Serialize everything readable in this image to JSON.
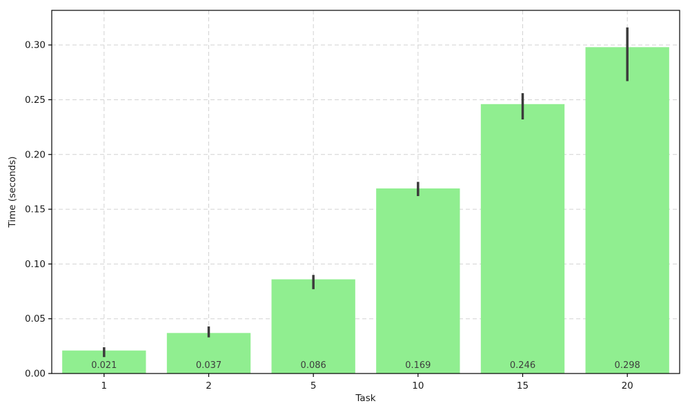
{
  "chart_data": {
    "type": "bar",
    "title": "",
    "xlabel": "Task",
    "ylabel": "Time (seconds)",
    "categories": [
      "1",
      "2",
      "5",
      "10",
      "15",
      "20"
    ],
    "values": [
      0.021,
      0.037,
      0.086,
      0.169,
      0.246,
      0.298
    ],
    "value_labels": [
      "0.021",
      "0.037",
      "0.086",
      "0.169",
      "0.246",
      "0.298"
    ],
    "error_low": [
      0.015,
      0.033,
      0.077,
      0.162,
      0.232,
      0.267
    ],
    "error_high": [
      0.024,
      0.043,
      0.09,
      0.175,
      0.256,
      0.316
    ],
    "y_ticks": [
      {
        "v": 0.0,
        "label": "0.00"
      },
      {
        "v": 0.05,
        "label": "0.05"
      },
      {
        "v": 0.1,
        "label": "0.10"
      },
      {
        "v": 0.15,
        "label": "0.15"
      },
      {
        "v": 0.2,
        "label": "0.20"
      },
      {
        "v": 0.25,
        "label": "0.25"
      },
      {
        "v": 0.3,
        "label": "0.30"
      }
    ],
    "ylim": [
      0,
      0.3316
    ],
    "grid": true,
    "legend": "none",
    "colors": {
      "bar": "#90ee90",
      "error_bar": "#3b3b3b",
      "value_label": "#3d3d3d",
      "grid_line": "#d2d2d2",
      "spine": "#000000",
      "background": "#ffffff"
    }
  }
}
